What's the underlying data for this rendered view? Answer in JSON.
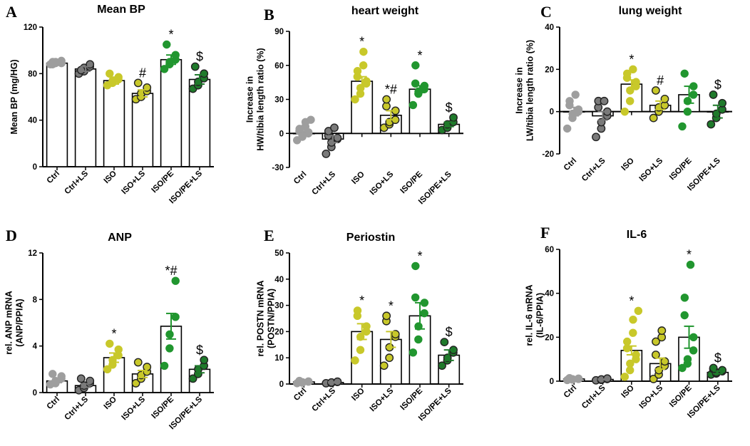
{
  "colors": {
    "ctrl": "#9e9e9e",
    "ctrl_ls": "#7a7a7a",
    "iso": "#c8c82a",
    "iso_ls": "#c8c82a",
    "isope": "#21962f",
    "isope_ls": "#1f7a2b"
  },
  "chart_data": [
    {
      "panel": "A",
      "type": "bar",
      "title": "Mean BP",
      "ylabel": [
        "Mean BP (mg/HG)"
      ],
      "ylim": [
        0,
        120
      ],
      "yticks": [
        0,
        40,
        80,
        120
      ],
      "categories": [
        "Ctrl",
        "Ctrl+LS",
        "ISO",
        "ISO+LS",
        "ISO/PE",
        "ISO/PE+LS"
      ],
      "values": [
        89,
        84,
        74,
        63,
        92,
        75
      ],
      "sem": [
        1,
        2,
        3,
        3,
        4,
        4
      ],
      "points": [
        [
          88,
          89,
          90,
          91,
          89,
          88,
          90
        ],
        [
          80,
          82,
          85,
          86,
          88,
          83
        ],
        [
          70,
          72,
          74,
          75,
          77,
          80
        ],
        [
          58,
          60,
          63,
          65,
          68,
          72
        ],
        [
          84,
          88,
          90,
          92,
          96,
          105
        ],
        [
          67,
          70,
          73,
          76,
          80,
          86
        ]
      ],
      "annotations": [
        "",
        "",
        "",
        "#",
        "*",
        "$"
      ]
    },
    {
      "panel": "B",
      "type": "bar",
      "title": "heart weight",
      "ylabel": [
        "Increase in",
        "HW/tibia length ratio (%)"
      ],
      "ylim": [
        -30,
        90
      ],
      "yticks": [
        -30,
        0,
        30,
        60,
        90
      ],
      "categories": [
        "Ctrl",
        "Ctrl+LS",
        "ISO",
        "ISO+LS",
        "ISO/PE",
        "ISO/PE+LS"
      ],
      "values": [
        0,
        -5,
        46,
        16,
        39,
        8
      ],
      "sem": [
        2,
        3,
        4,
        4,
        3,
        2
      ],
      "points": [
        [
          -6,
          -3,
          -2,
          0,
          1,
          2,
          4,
          6,
          10,
          12
        ],
        [
          -18,
          -12,
          -8,
          -5,
          -4,
          -2,
          2,
          5
        ],
        [
          30,
          35,
          40,
          44,
          46,
          50,
          55,
          60,
          72
        ],
        [
          5,
          8,
          10,
          12,
          20,
          24,
          30
        ],
        [
          25,
          35,
          37,
          39,
          42,
          44,
          60
        ],
        [
          3,
          5,
          8,
          10,
          14
        ]
      ],
      "annotations": [
        "",
        "",
        "*",
        "*#",
        "*",
        "$"
      ]
    },
    {
      "panel": "C",
      "type": "bar",
      "title": "lung weight",
      "ylabel": [
        "Increase in",
        "LW/tibia length ratio (%)"
      ],
      "ylim": [
        -20,
        40
      ],
      "yticks": [
        -20,
        0,
        20,
        40
      ],
      "categories": [
        "Ctrl",
        "Ctrl+LS",
        "ISO",
        "ISO+LS",
        "ISO/PE",
        "ISO/PE+LS"
      ],
      "values": [
        0,
        -2,
        13,
        3,
        8,
        0
      ],
      "sem": [
        2,
        2,
        2,
        2,
        4,
        3
      ],
      "points": [
        [
          -8,
          -3,
          -1,
          0,
          1,
          3,
          5,
          8
        ],
        [
          -12,
          -8,
          -5,
          -2,
          0,
          2,
          5,
          5
        ],
        [
          0,
          5,
          10,
          12,
          14,
          16,
          18,
          20
        ],
        [
          -3,
          0,
          2,
          3,
          6,
          10
        ],
        [
          -7,
          0,
          5,
          8,
          12,
          18
        ],
        [
          -6,
          -3,
          -1,
          1,
          4,
          8
        ]
      ],
      "annotations": [
        "",
        "",
        "*",
        "#",
        "",
        "$"
      ]
    },
    {
      "panel": "D",
      "type": "bar",
      "title": "ANP",
      "ylabel": [
        "rel. ANP mRNA",
        "(ANP/PPIA)"
      ],
      "ylim": [
        0,
        12
      ],
      "yticks": [
        0,
        4,
        8,
        12
      ],
      "categories": [
        "Ctrl",
        "Ctrl+LS",
        "ISO",
        "ISO+LS",
        "ISO/PE",
        "ISO/PE+LS"
      ],
      "values": [
        1.0,
        0.6,
        3.0,
        1.6,
        5.7,
        2.0
      ],
      "sem": [
        0.15,
        0.15,
        0.4,
        0.3,
        1.1,
        0.3
      ],
      "points": [
        [
          0.7,
          0.8,
          1.0,
          1.2,
          1.4,
          1.6
        ],
        [
          0.2,
          0.4,
          0.6,
          0.8,
          1.0,
          1.2
        ],
        [
          2.0,
          2.4,
          2.8,
          3.2,
          3.7,
          4.2
        ],
        [
          0.8,
          1.2,
          1.5,
          1.8,
          2.2,
          2.6
        ],
        [
          2.3,
          3.8,
          5.0,
          6.5,
          9.6
        ],
        [
          1.2,
          1.6,
          2.0,
          2.3,
          2.8
        ]
      ],
      "annotations": [
        "",
        "",
        "*",
        "",
        "*#",
        "$"
      ]
    },
    {
      "panel": "E",
      "type": "bar",
      "title": "Periostin",
      "ylabel": [
        "rel. POSTN mRNA",
        "(POSTN/PPIA)"
      ],
      "ylim": [
        0,
        50
      ],
      "yticks": [
        0,
        10,
        20,
        30,
        40,
        50
      ],
      "categories": [
        "Ctrl",
        "Ctrl+LS",
        "ISO",
        "ISO+LS",
        "ISO/PE",
        "ISO/PE+LS"
      ],
      "values": [
        0.8,
        0.6,
        20,
        17,
        26,
        11
      ],
      "sem": [
        0.2,
        0.2,
        3,
        3,
        5,
        2
      ],
      "points": [
        [
          0.3,
          0.5,
          0.7,
          0.9,
          1.0,
          1.2
        ],
        [
          0.3,
          0.4,
          0.6,
          0.8,
          0.9
        ],
        [
          9,
          13,
          18,
          20,
          22,
          26,
          28
        ],
        [
          7,
          10,
          14,
          18,
          19,
          24,
          26
        ],
        [
          12,
          17,
          22,
          27,
          31,
          33,
          45
        ],
        [
          7,
          9,
          10,
          12,
          13,
          16
        ]
      ],
      "annotations": [
        "",
        "",
        "*",
        "*",
        "*",
        "$"
      ]
    },
    {
      "panel": "F",
      "type": "bar",
      "title": "IL-6",
      "ylabel": [
        "rel. IL-6 mRNA",
        "(IL-6/PPIA)"
      ],
      "ylim": [
        0,
        60
      ],
      "yticks": [
        0,
        20,
        40,
        60
      ],
      "categories": [
        "Ctrl",
        "Ctrl+LS",
        "ISO",
        "ISO+LS",
        "ISO/PE",
        "ISO/PE+LS"
      ],
      "values": [
        1,
        0.8,
        14,
        8,
        20,
        4
      ],
      "sem": [
        0.2,
        0.2,
        2,
        2.5,
        5,
        0.6
      ],
      "points": [
        [
          0.5,
          0.7,
          0.9,
          1.0,
          1.2,
          1.4
        ],
        [
          0.4,
          0.6,
          0.8,
          1.0,
          1.2
        ],
        [
          2,
          5,
          8,
          10,
          12,
          15,
          18,
          22,
          28,
          32
        ],
        [
          1,
          3,
          5,
          7,
          9,
          12,
          18,
          20,
          23
        ],
        [
          6,
          8,
          10,
          14,
          20,
          30,
          38,
          53
        ],
        [
          3,
          3.5,
          4,
          4.5,
          5,
          5.5,
          6
        ]
      ],
      "annotations": [
        "",
        "",
        "*",
        "",
        "*",
        "$"
      ]
    }
  ]
}
